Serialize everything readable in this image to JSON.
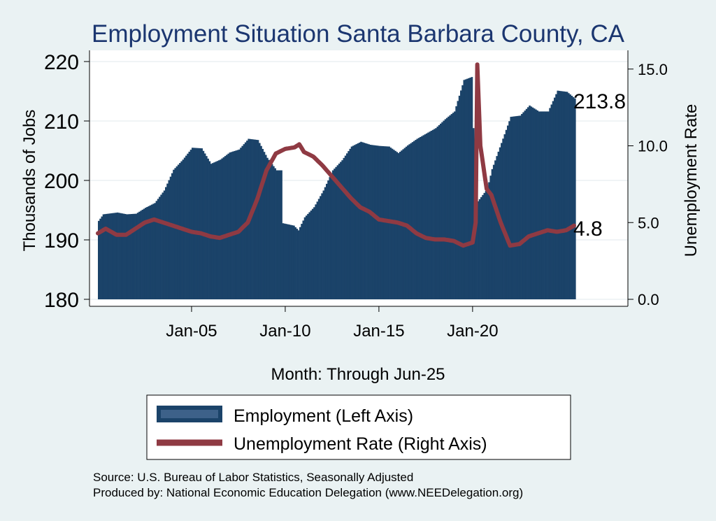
{
  "chart_data": {
    "type": "bar+line",
    "title": "Employment Situation Santa Barbara  County, CA",
    "xlabel": "Month: Through Jun-25",
    "ylabel_left": "Thousands of Jobs",
    "ylabel_right": "Unemployment Rate",
    "x_ticks": [
      "Jan-05",
      "Jan-10",
      "Jan-15",
      "Jan-20"
    ],
    "y_left_ticks": [
      "180",
      "190",
      "200",
      "210",
      "220"
    ],
    "y_right_ticks": [
      "0.0",
      "5.0",
      "10.0",
      "15.0"
    ],
    "y_left_lim": [
      180,
      221
    ],
    "y_right_lim": [
      0,
      15.5
    ],
    "x_range": [
      "2000-01",
      "2025-06"
    ],
    "grid": true,
    "legend_position": "bottom",
    "legend": [
      "Employment (Left Axis)",
      "Unemployment Rate (Right Axis)"
    ],
    "end_labels": {
      "employment": "213.8",
      "unemployment": "4.8"
    },
    "colors": {
      "employment": "#1b4369",
      "unemployment": "#8f3a43",
      "background": "#eaf2f3",
      "plot_bg": "#ffffff",
      "title": "#1b3670"
    },
    "employment_series": [
      [
        "2000-01",
        193.2
      ],
      [
        "2000-04",
        194.3
      ],
      [
        "2001-01",
        194.6
      ],
      [
        "2001-07",
        194.3
      ],
      [
        "2002-01",
        194.4
      ],
      [
        "2002-07",
        195.4
      ],
      [
        "2003-01",
        196.2
      ],
      [
        "2003-07",
        198.3
      ],
      [
        "2004-01",
        201.8
      ],
      [
        "2004-07",
        203.5
      ],
      [
        "2005-01",
        205.5
      ],
      [
        "2005-07",
        205.4
      ],
      [
        "2006-01",
        202.8
      ],
      [
        "2006-07",
        203.5
      ],
      [
        "2007-01",
        204.7
      ],
      [
        "2007-07",
        205.2
      ],
      [
        "2008-01",
        207.0
      ],
      [
        "2008-07",
        206.8
      ],
      [
        "2009-01",
        203.8
      ],
      [
        "2009-07",
        201.7
      ],
      [
        "2009-10",
        201.7
      ],
      [
        "2009-11",
        192.8
      ],
      [
        "2010-06",
        192.4
      ],
      [
        "2010-09",
        191.6
      ],
      [
        "2011-01",
        193.8
      ],
      [
        "2011-07",
        195.5
      ],
      [
        "2012-01",
        198.3
      ],
      [
        "2012-07",
        201.7
      ],
      [
        "2013-01",
        203.4
      ],
      [
        "2013-07",
        205.7
      ],
      [
        "2014-01",
        206.5
      ],
      [
        "2014-07",
        206.0
      ],
      [
        "2015-01",
        205.8
      ],
      [
        "2015-07",
        205.7
      ],
      [
        "2016-01",
        204.6
      ],
      [
        "2016-07",
        205.9
      ],
      [
        "2017-01",
        207.0
      ],
      [
        "2017-07",
        207.9
      ],
      [
        "2018-01",
        208.8
      ],
      [
        "2018-07",
        210.3
      ],
      [
        "2019-01",
        211.6
      ],
      [
        "2019-07",
        216.9
      ],
      [
        "2019-12",
        217.4
      ],
      [
        "2020-01",
        208.8
      ],
      [
        "2020-04",
        196.5
      ],
      [
        "2020-10",
        198.6
      ],
      [
        "2021-01",
        201.9
      ],
      [
        "2021-07",
        206.3
      ],
      [
        "2022-01",
        210.7
      ],
      [
        "2022-07",
        210.9
      ],
      [
        "2023-01",
        212.6
      ],
      [
        "2023-07",
        211.6
      ],
      [
        "2024-01",
        211.6
      ],
      [
        "2024-07",
        215.1
      ],
      [
        "2025-01",
        214.9
      ],
      [
        "2025-06",
        213.8
      ]
    ],
    "unemployment_series": [
      [
        "2000-01",
        4.3
      ],
      [
        "2000-06",
        4.6
      ],
      [
        "2001-01",
        4.2
      ],
      [
        "2001-07",
        4.2
      ],
      [
        "2002-01",
        4.6
      ],
      [
        "2002-07",
        5.0
      ],
      [
        "2003-01",
        5.2
      ],
      [
        "2003-07",
        5.0
      ],
      [
        "2004-01",
        4.8
      ],
      [
        "2004-07",
        4.6
      ],
      [
        "2005-01",
        4.4
      ],
      [
        "2005-07",
        4.3
      ],
      [
        "2006-01",
        4.1
      ],
      [
        "2006-07",
        4.0
      ],
      [
        "2007-01",
        4.2
      ],
      [
        "2007-07",
        4.4
      ],
      [
        "2008-01",
        5.0
      ],
      [
        "2008-07",
        6.5
      ],
      [
        "2009-01",
        8.4
      ],
      [
        "2009-07",
        9.5
      ],
      [
        "2010-01",
        9.8
      ],
      [
        "2010-07",
        9.9
      ],
      [
        "2010-10",
        10.1
      ],
      [
        "2011-01",
        9.6
      ],
      [
        "2011-07",
        9.3
      ],
      [
        "2012-01",
        8.7
      ],
      [
        "2012-07",
        8.0
      ],
      [
        "2013-01",
        7.3
      ],
      [
        "2013-07",
        6.6
      ],
      [
        "2014-01",
        6.0
      ],
      [
        "2014-07",
        5.7
      ],
      [
        "2015-01",
        5.2
      ],
      [
        "2015-07",
        5.1
      ],
      [
        "2016-01",
        5.0
      ],
      [
        "2016-07",
        4.8
      ],
      [
        "2017-01",
        4.3
      ],
      [
        "2017-07",
        4.0
      ],
      [
        "2018-01",
        3.9
      ],
      [
        "2018-07",
        3.9
      ],
      [
        "2019-01",
        3.8
      ],
      [
        "2019-07",
        3.5
      ],
      [
        "2020-01",
        3.7
      ],
      [
        "2020-03",
        5.0
      ],
      [
        "2020-04",
        15.3
      ],
      [
        "2020-06",
        10.0
      ],
      [
        "2020-10",
        7.2
      ],
      [
        "2021-01",
        6.8
      ],
      [
        "2021-07",
        5.0
      ],
      [
        "2022-01",
        3.5
      ],
      [
        "2022-07",
        3.6
      ],
      [
        "2023-01",
        4.1
      ],
      [
        "2023-07",
        4.3
      ],
      [
        "2024-01",
        4.5
      ],
      [
        "2024-07",
        4.4
      ],
      [
        "2025-01",
        4.5
      ],
      [
        "2025-06",
        4.8
      ]
    ]
  },
  "footer": {
    "source": "Source: U.S. Bureau of Labor Statistics, Seasonally Adjusted",
    "produced": "Produced by: National Economic Education Delegation (www.NEEDelegation.org)"
  }
}
